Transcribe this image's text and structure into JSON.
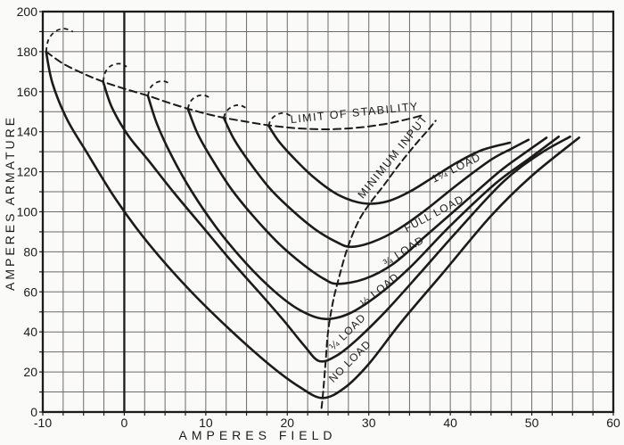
{
  "figure": {
    "background": "#fafaf8",
    "ink": "#1b1b1b",
    "grid_color": "#6e6b66",
    "type_label": "synchronous-motor V-curves"
  },
  "chart_data": {
    "type": "line",
    "title": "",
    "xlabel": "AMPERES FIELD",
    "ylabel": "AMPERES ARMATURE",
    "xlim": [
      -10,
      60
    ],
    "ylim": [
      0,
      200
    ],
    "x_ticks": [
      -10,
      0,
      10,
      20,
      30,
      40,
      50,
      60
    ],
    "y_ticks": [
      0,
      20,
      40,
      60,
      80,
      100,
      120,
      140,
      160,
      180,
      200
    ],
    "x_minor_step": 2.5,
    "y_minor_step": 10,
    "grid": true,
    "legend_position": "labels-on-curves",
    "series": [
      {
        "id": "no-load",
        "name": "NO LOAD",
        "style": "solid",
        "points": [
          [
            -9.6,
            180
          ],
          [
            -8.8,
            164
          ],
          [
            -7,
            146
          ],
          [
            -4.5,
            129
          ],
          [
            -1,
            106
          ],
          [
            3,
            84
          ],
          [
            8,
            61
          ],
          [
            13,
            41
          ],
          [
            18,
            23
          ],
          [
            21.5,
            12.5
          ],
          [
            24.3,
            7
          ],
          [
            27,
            12
          ],
          [
            30,
            24
          ],
          [
            34,
            45
          ],
          [
            39,
            69
          ],
          [
            45,
            98
          ],
          [
            50,
            118
          ],
          [
            55.8,
            137
          ]
        ]
      },
      {
        "id": "quarter-load",
        "name": "¼ LOAD",
        "style": "solid",
        "points": [
          [
            -2.6,
            165
          ],
          [
            -1.5,
            152
          ],
          [
            0.5,
            138
          ],
          [
            3,
            125.5
          ],
          [
            6,
            110
          ],
          [
            9.5,
            93
          ],
          [
            13,
            76
          ],
          [
            16.5,
            60
          ],
          [
            19.5,
            46
          ],
          [
            22,
            33.5
          ],
          [
            23.9,
            25.5
          ],
          [
            26,
            28
          ],
          [
            28.5,
            36
          ],
          [
            32,
            50
          ],
          [
            36,
            68
          ],
          [
            41,
            91
          ],
          [
            46.5,
            115
          ],
          [
            51,
            129
          ],
          [
            54.7,
            137.5
          ]
        ]
      },
      {
        "id": "half-load",
        "name": "½ LOAD",
        "style": "solid",
        "points": [
          [
            2.9,
            158
          ],
          [
            4,
            144
          ],
          [
            5.8,
            128
          ],
          [
            8.3,
            110
          ],
          [
            11.5,
            91
          ],
          [
            15,
            74
          ],
          [
            18.5,
            60
          ],
          [
            21.5,
            51
          ],
          [
            24.5,
            46.5
          ],
          [
            27.5,
            49
          ],
          [
            31,
            58
          ],
          [
            35,
            72
          ],
          [
            40,
            93
          ],
          [
            45.5,
            114
          ],
          [
            49.5,
            126
          ],
          [
            53.3,
            137.5
          ]
        ]
      },
      {
        "id": "three-quarter-load",
        "name": "¾ LOAD",
        "style": "solid",
        "points": [
          [
            7.8,
            151.5
          ],
          [
            9,
            139
          ],
          [
            10.8,
            126
          ],
          [
            13.2,
            111
          ],
          [
            16,
            97
          ],
          [
            19,
            84
          ],
          [
            22,
            73.5
          ],
          [
            24.5,
            66.5
          ],
          [
            26.2,
            64
          ],
          [
            29.5,
            66.5
          ],
          [
            33,
            74
          ],
          [
            37,
            88
          ],
          [
            41.5,
            104
          ],
          [
            46,
            120
          ],
          [
            49,
            129
          ],
          [
            51.8,
            137
          ]
        ]
      },
      {
        "id": "full-load",
        "name": "FULL LOAD",
        "style": "solid",
        "points": [
          [
            12.2,
            147
          ],
          [
            13.5,
            136
          ],
          [
            15.5,
            124
          ],
          [
            18,
            111
          ],
          [
            20.8,
            100
          ],
          [
            23.5,
            91
          ],
          [
            26,
            85
          ],
          [
            27.8,
            82.5
          ],
          [
            30.5,
            85
          ],
          [
            33.5,
            91
          ],
          [
            37,
            101
          ],
          [
            41,
            114
          ],
          [
            45,
            126
          ],
          [
            47.5,
            131.5
          ],
          [
            49.6,
            136
          ]
        ]
      },
      {
        "id": "one-and-quarter-load",
        "name": "1¼ LOAD",
        "style": "solid",
        "points": [
          [
            17.7,
            143
          ],
          [
            19,
            135
          ],
          [
            21,
            126
          ],
          [
            23.3,
            117
          ],
          [
            25.8,
            109.5
          ],
          [
            28,
            105.5
          ],
          [
            30.1,
            104
          ],
          [
            32.5,
            105.5
          ],
          [
            35,
            110
          ],
          [
            38,
            117.5
          ],
          [
            41,
            125
          ],
          [
            44,
            131
          ],
          [
            47.3,
            134.5
          ]
        ]
      },
      {
        "id": "limit-of-stability",
        "name": "LIMIT OF STABILITY",
        "style": "dashed",
        "points": [
          [
            -9.6,
            180
          ],
          [
            -7.5,
            174
          ],
          [
            -5,
            169
          ],
          [
            -2.6,
            165
          ],
          [
            0,
            161.5
          ],
          [
            2.9,
            158
          ],
          [
            5.4,
            154.5
          ],
          [
            7.8,
            151.5
          ],
          [
            10,
            149
          ],
          [
            12.2,
            147
          ],
          [
            15,
            145
          ],
          [
            17.7,
            143.2
          ],
          [
            21,
            141.8
          ],
          [
            24.5,
            141.2
          ],
          [
            28,
            141.8
          ],
          [
            31.5,
            143.5
          ],
          [
            34.5,
            146
          ],
          [
            36.8,
            148.5
          ]
        ]
      },
      {
        "id": "minimum-input",
        "name": "MINIMUM INPUT",
        "style": "dashed",
        "points": [
          [
            24.2,
            2
          ],
          [
            24.4,
            10
          ],
          [
            24.7,
            25
          ],
          [
            25,
            40
          ],
          [
            25.6,
            55
          ],
          [
            26.4,
            68
          ],
          [
            27.4,
            82
          ],
          [
            28.7,
            95
          ],
          [
            30.1,
            104
          ],
          [
            31.8,
            113
          ],
          [
            33.8,
            124
          ],
          [
            35.8,
            134
          ],
          [
            37.2,
            140.5
          ],
          [
            38.2,
            145.5
          ]
        ]
      }
    ],
    "instability_hooks": [
      {
        "for": "no-load",
        "points": [
          [
            -9.6,
            180
          ],
          [
            -9.3,
            186
          ],
          [
            -8.5,
            190
          ],
          [
            -7.4,
            191.5
          ],
          [
            -6.3,
            190
          ]
        ]
      },
      {
        "for": "quarter-load",
        "points": [
          [
            -2.6,
            165
          ],
          [
            -2.3,
            170
          ],
          [
            -1.6,
            173
          ],
          [
            -0.6,
            174
          ],
          [
            0.3,
            172.5
          ]
        ]
      },
      {
        "for": "half-load",
        "points": [
          [
            2.9,
            158
          ],
          [
            3.2,
            162
          ],
          [
            3.9,
            164.5
          ],
          [
            4.8,
            165.3
          ],
          [
            5.6,
            164
          ]
        ]
      },
      {
        "for": "three-quarter-load",
        "points": [
          [
            7.8,
            151.5
          ],
          [
            8.1,
            155
          ],
          [
            8.8,
            157.5
          ],
          [
            9.7,
            158.3
          ],
          [
            10.5,
            157
          ]
        ]
      },
      {
        "for": "full-load",
        "points": [
          [
            12.2,
            147
          ],
          [
            12.5,
            150
          ],
          [
            13.2,
            152.5
          ],
          [
            14.1,
            153.3
          ],
          [
            14.9,
            152
          ]
        ]
      },
      {
        "for": "one-and-quarter-load",
        "points": [
          [
            17.7,
            143
          ],
          [
            18,
            146
          ],
          [
            18.7,
            148.5
          ],
          [
            19.6,
            149.3
          ],
          [
            20.4,
            148
          ]
        ]
      }
    ],
    "annotations": [
      {
        "id": "limit-of-stability-label",
        "text": "LIMIT OF STABILITY",
        "f": 28.3,
        "a": 147.6,
        "angle": -6,
        "size": 12.5,
        "spacing": 1.5
      },
      {
        "id": "minimum-input-label",
        "text": "MINIMUM INPUT",
        "f": 33.3,
        "a": 126.5,
        "angle": -51,
        "size": 12.5,
        "spacing": 1.5
      },
      {
        "id": "one-and-quarter-load-label",
        "text": "1¼ LOAD",
        "f": 40.9,
        "a": 120.3,
        "angle": -26,
        "size": 12,
        "spacing": 1
      },
      {
        "id": "full-load-label",
        "text": "FULL LOAD",
        "f": 38.2,
        "a": 97.5,
        "angle": -28,
        "size": 12,
        "spacing": 1
      },
      {
        "id": "three-quarter-load-label",
        "text": "¾ LOAD",
        "f": 34.5,
        "a": 78.8,
        "angle": -33,
        "size": 12,
        "spacing": 1
      },
      {
        "id": "half-load-label",
        "text": "½ LOAD",
        "f": 31.6,
        "a": 59.7,
        "angle": -39,
        "size": 12,
        "spacing": 1
      },
      {
        "id": "quarter-load-label",
        "text": "¼ LOAD",
        "f": 27.7,
        "a": 38.8,
        "angle": -45,
        "size": 12,
        "spacing": 1
      },
      {
        "id": "no-load-label",
        "text": "NO LOAD",
        "f": 28.0,
        "a": 24.1,
        "angle": -45,
        "size": 12,
        "spacing": 1
      }
    ]
  }
}
